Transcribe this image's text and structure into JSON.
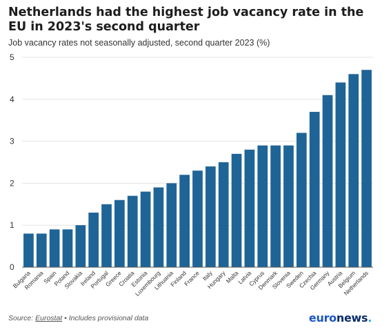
{
  "header": {
    "title": "Netherlands had the highest job vacancy rate in the EU in 2023's second quarter",
    "subtitle": "Job vacancy rates not seasonally adjusted, second quarter 2023 (%)"
  },
  "footer": {
    "source_prefix": "Source: ",
    "source_link": "Eurostat",
    "source_note": " • Includes provisional data"
  },
  "brand": {
    "part1": "euro",
    "part2": "news",
    "dot": "."
  },
  "colors": {
    "bar": "#1f6496",
    "grid": "#e3e3e3",
    "axis": "#555555"
  },
  "chart_data": {
    "type": "bar",
    "categories": [
      "Bulgaria",
      "Romania",
      "Spain",
      "Poland",
      "Slovakia",
      "Ireland",
      "Portugal",
      "Greece",
      "Croatia",
      "Estonia",
      "Luxembourg",
      "Lithuania",
      "Finland",
      "France",
      "Italy",
      "Hungary",
      "Malta",
      "Latvia",
      "Cyprus",
      "Denmark",
      "Slovenia",
      "Sweden",
      "Czechia",
      "Germany",
      "Austria",
      "Belgium",
      "Netherlands"
    ],
    "values": [
      0.8,
      0.8,
      0.9,
      0.9,
      1.0,
      1.3,
      1.5,
      1.6,
      1.7,
      1.8,
      1.9,
      2.0,
      2.2,
      2.3,
      2.4,
      2.5,
      2.7,
      2.8,
      2.9,
      2.9,
      2.9,
      3.2,
      3.7,
      4.1,
      4.4,
      4.6,
      4.7
    ],
    "ylim": [
      0,
      5
    ],
    "yticks": [
      0,
      1,
      2,
      3,
      4,
      5
    ],
    "grid": true
  }
}
